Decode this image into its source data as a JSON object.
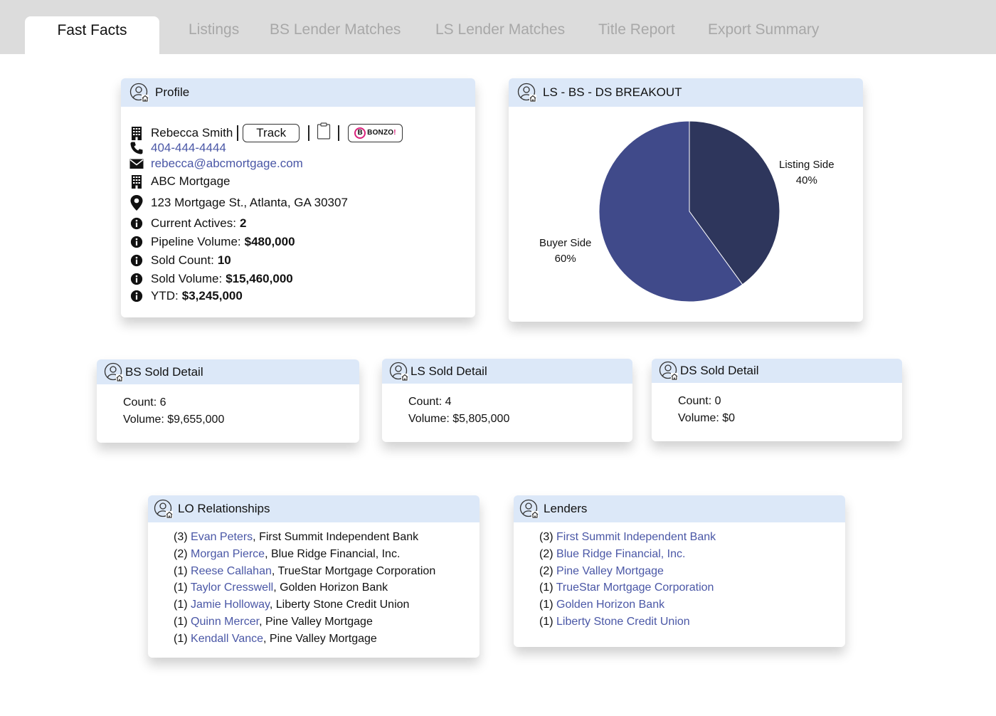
{
  "tabs": [
    {
      "label": "Fast Facts"
    },
    {
      "label": "Listings"
    },
    {
      "label": "BS Lender Matches"
    },
    {
      "label": "LS Lender Matches"
    },
    {
      "label": "Title Report"
    },
    {
      "label": "Export Summary"
    }
  ],
  "profile": {
    "title": "Profile",
    "name": "Rebecca Smith",
    "track_label": "Track",
    "bonzo_label": "BONZO",
    "phone": "404-444-4444",
    "email": "rebecca@abcmortgage.com",
    "company": "ABC Mortgage",
    "address": "123 Mortgage St., Atlanta, GA 30307",
    "stats": [
      {
        "label": "Current Actives:",
        "value": "2"
      },
      {
        "label": "Pipeline Volume:",
        "value": "$480,000"
      },
      {
        "label": "Sold Count:",
        "value": "10"
      },
      {
        "label": "Sold Volume:",
        "value": "$15,460,000"
      },
      {
        "label": "YTD:",
        "value": "$3,245,000"
      }
    ]
  },
  "breakout": {
    "title": "LS - BS - DS BREAKOUT"
  },
  "chart_data": {
    "type": "pie",
    "title": "LS - BS - DS BREAKOUT",
    "slices": [
      {
        "label": "Listing Side",
        "value": 40,
        "value_label": "40%",
        "color": "#2e365c"
      },
      {
        "label": "Buyer Side",
        "value": 60,
        "value_label": "60%",
        "color": "#404a8a"
      }
    ]
  },
  "bs_sold": {
    "title": "BS Sold Detail",
    "count": "Count: 6",
    "volume": "Volume: $9,655,000"
  },
  "ls_sold": {
    "title": "LS Sold Detail",
    "count": "Count: 4",
    "volume": "Volume: $5,805,000"
  },
  "ds_sold": {
    "title": "DS Sold Detail",
    "count": "Count: 0",
    "volume": "Volume: $0"
  },
  "lo_relationships": {
    "title": "LO Relationships",
    "items": [
      {
        "count": "(3)",
        "name": "Evan Peters",
        "org": ", First Summit Independent Bank"
      },
      {
        "count": "(2)",
        "name": "Morgan Pierce",
        "org": ", Blue Ridge Financial, Inc."
      },
      {
        "count": "(1)",
        "name": "Reese Callahan",
        "org": ", TrueStar Mortgage Corporation"
      },
      {
        "count": "(1)",
        "name": "Taylor Cresswell",
        "org": ", Golden Horizon Bank"
      },
      {
        "count": "(1)",
        "name": "Jamie Holloway",
        "org": ", Liberty Stone Credit Union"
      },
      {
        "count": "(1)",
        "name": "Quinn Mercer",
        "org": ", Pine Valley Mortgage"
      },
      {
        "count": "(1)",
        "name": "Kendall Vance",
        "org": ", Pine Valley Mortgage"
      }
    ]
  },
  "lenders": {
    "title": "Lenders",
    "items": [
      {
        "count": "(3)",
        "name": "First Summit Independent Bank"
      },
      {
        "count": "(2)",
        "name": "Blue Ridge Financial, Inc."
      },
      {
        "count": "(2)",
        "name": "Pine Valley Mortgage"
      },
      {
        "count": "(1)",
        "name": "TrueStar Mortgage Corporation"
      },
      {
        "count": "(1)",
        "name": "Golden Horizon Bank"
      },
      {
        "count": "(1)",
        "name": "Liberty Stone Credit Union"
      }
    ]
  },
  "colors": {
    "header_bg": "#dce8f8",
    "link": "#4a57a6",
    "tab_bar": "#dcdcdc",
    "inactive_tab": "#a8a8a8"
  },
  "icons": {
    "card_header": "user-home-icon",
    "company": "building-icon",
    "phone": "phone-icon",
    "email": "envelope-icon",
    "address": "map-pin-icon",
    "stat": "info-icon",
    "notes": "clipboard-icon"
  }
}
